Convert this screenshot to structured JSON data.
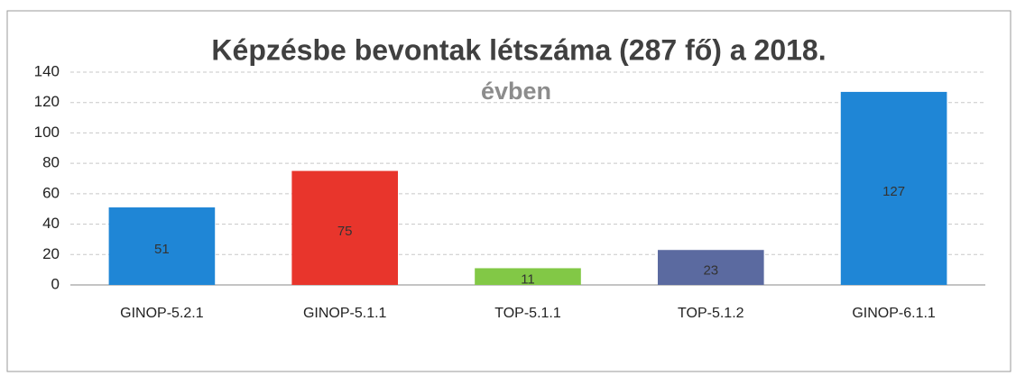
{
  "chart_data": {
    "type": "bar",
    "title": "Képzésbe bevontak létszáma (287 fő) a 2018.",
    "subtitle": "évben",
    "categories": [
      "GINOP-5.2.1",
      "GINOP-5.1.1",
      "TOP-5.1.1",
      "TOP-5.1.2",
      "GINOP-6.1.1"
    ],
    "values": [
      51,
      75,
      11,
      23,
      127
    ],
    "colors": [
      "#1f86d6",
      "#e8352c",
      "#82c846",
      "#5b6aa0",
      "#1f86d6"
    ],
    "ylim": [
      0,
      140
    ],
    "yticks": [
      0,
      20,
      40,
      60,
      80,
      100,
      120,
      140
    ],
    "grid": true
  }
}
